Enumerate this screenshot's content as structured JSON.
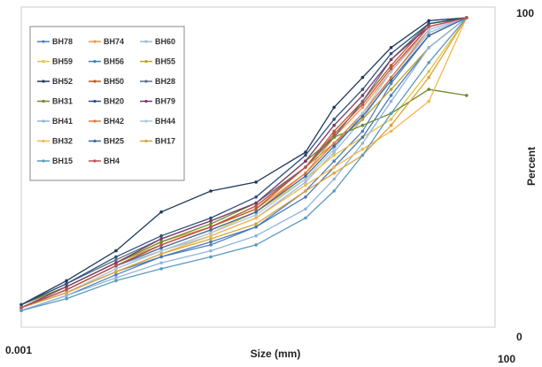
{
  "chart_data": {
    "type": "line",
    "xlabel": "Size (mm)",
    "ylabel": "Percent",
    "x_scale": "log",
    "xlim": [
      0.001,
      100
    ],
    "ylim": [
      0,
      100
    ],
    "x_tick_labels": [
      "0.001",
      "100"
    ],
    "y_tick_labels": [
      "0",
      "100"
    ],
    "grid": false,
    "legend_position": "top-left",
    "series": [
      {
        "name": "BH78",
        "color": "#4f81bd",
        "x": [
          0.001,
          0.003,
          0.01,
          0.03,
          0.1,
          0.3,
          1,
          2,
          4,
          8,
          20,
          50
        ],
        "y": [
          2,
          7,
          14,
          20,
          24,
          30,
          42,
          52,
          62,
          78,
          94,
          100
        ]
      },
      {
        "name": "BH74",
        "color": "#f79646",
        "x": [
          0.001,
          0.003,
          0.01,
          0.03,
          0.1,
          0.3,
          1,
          2,
          4,
          8,
          20,
          50
        ],
        "y": [
          4,
          10,
          18,
          25,
          30,
          36,
          48,
          60,
          70,
          82,
          97,
          100
        ]
      },
      {
        "name": "BH60",
        "color": "#9bbbd9",
        "x": [
          0.001,
          0.003,
          0.01,
          0.03,
          0.1,
          0.3,
          1,
          2,
          4,
          8,
          20,
          50
        ],
        "y": [
          3,
          9,
          17,
          22,
          27,
          33,
          45,
          55,
          66,
          80,
          95,
          100
        ]
      },
      {
        "name": "BH59",
        "color": "#e8c33a",
        "x": [
          0.001,
          0.003,
          0.01,
          0.03,
          0.1,
          0.3,
          1,
          2,
          4,
          8,
          20,
          50
        ],
        "y": [
          3,
          8,
          16,
          22,
          28,
          35,
          46,
          54,
          60,
          66,
          82,
          100
        ]
      },
      {
        "name": "BH56",
        "color": "#4a7ab0",
        "x": [
          0.001,
          0.003,
          0.01,
          0.03,
          0.1,
          0.3,
          1,
          2,
          4,
          8,
          20,
          50
        ],
        "y": [
          3,
          8,
          15,
          20,
          25,
          30,
          40,
          50,
          60,
          74,
          90,
          100
        ]
      },
      {
        "name": "BH55",
        "color": "#c0a030",
        "x": [
          0.001,
          0.003,
          0.01,
          0.03,
          0.1,
          0.3,
          1,
          2,
          4,
          8,
          20,
          50
        ],
        "y": [
          4,
          10,
          18,
          24,
          30,
          37,
          50,
          58,
          66,
          76,
          90,
          100
        ]
      },
      {
        "name": "BH52",
        "color": "#1f3a5c",
        "x": [
          0.001,
          0.003,
          0.01,
          0.03,
          0.1,
          0.3,
          1,
          2,
          4,
          8,
          20,
          50
        ],
        "y": [
          4,
          12,
          22,
          35,
          42,
          45,
          55,
          70,
          80,
          90,
          99,
          100
        ]
      },
      {
        "name": "BH50",
        "color": "#b85c1e",
        "x": [
          0.001,
          0.003,
          0.01,
          0.03,
          0.1,
          0.3,
          1,
          2,
          4,
          8,
          20,
          50
        ],
        "y": [
          3,
          9,
          17,
          24,
          30,
          36,
          50,
          62,
          72,
          84,
          98,
          100
        ]
      },
      {
        "name": "BH28",
        "color": "#5a6e85",
        "x": [
          0.001,
          0.003,
          0.01,
          0.03,
          0.1,
          0.3,
          1,
          2,
          4,
          8,
          20,
          50
        ],
        "y": [
          4,
          11,
          19,
          26,
          32,
          38,
          50,
          60,
          72,
          86,
          98,
          100
        ]
      },
      {
        "name": "BH31",
        "color": "#6b8a2a",
        "x": [
          0.001,
          0.003,
          0.01,
          0.03,
          0.1,
          0.3,
          1,
          2,
          4,
          8,
          20,
          50
        ],
        "y": [
          4,
          10,
          18,
          25,
          31,
          38,
          52,
          60,
          64,
          68,
          76,
          74
        ]
      },
      {
        "name": "BH20",
        "color": "#2d4f7a",
        "x": [
          0.001,
          0.003,
          0.01,
          0.03,
          0.1,
          0.3,
          1,
          2,
          4,
          8,
          20,
          50
        ],
        "y": [
          4,
          11,
          20,
          27,
          33,
          40,
          54,
          66,
          76,
          88,
          98,
          100
        ]
      },
      {
        "name": "BH79",
        "color": "#7a3a6a",
        "x": [
          0.001,
          0.003,
          0.01,
          0.03,
          0.1,
          0.3,
          1,
          2,
          4,
          8,
          20,
          50
        ],
        "y": [
          3,
          10,
          18,
          26,
          32,
          38,
          52,
          64,
          74,
          86,
          97,
          100
        ]
      },
      {
        "name": "BH41",
        "color": "#8fb4dd",
        "x": [
          0.001,
          0.003,
          0.01,
          0.03,
          0.1,
          0.3,
          1,
          2,
          4,
          8,
          20,
          50
        ],
        "y": [
          2,
          7,
          13,
          18,
          22,
          27,
          36,
          46,
          58,
          72,
          90,
          100
        ]
      },
      {
        "name": "BH42",
        "color": "#e07a3a",
        "x": [
          0.001,
          0.003,
          0.01,
          0.03,
          0.1,
          0.3,
          1,
          2,
          4,
          8,
          20,
          50
        ],
        "y": [
          3,
          9,
          17,
          23,
          29,
          35,
          48,
          58,
          68,
          80,
          96,
          100
        ]
      },
      {
        "name": "BH44",
        "color": "#a9c4e2",
        "x": [
          0.001,
          0.003,
          0.01,
          0.03,
          0.1,
          0.3,
          1,
          2,
          4,
          8,
          20,
          50
        ],
        "y": [
          3,
          8,
          16,
          22,
          28,
          34,
          46,
          56,
          68,
          82,
          96,
          100
        ]
      },
      {
        "name": "BH32",
        "color": "#f2b84b",
        "x": [
          0.001,
          0.003,
          0.01,
          0.03,
          0.1,
          0.3,
          1,
          2,
          4,
          8,
          20,
          50
        ],
        "y": [
          3,
          8,
          15,
          21,
          27,
          33,
          44,
          50,
          56,
          62,
          72,
          100
        ]
      },
      {
        "name": "BH25",
        "color": "#3d6a99",
        "x": [
          0.001,
          0.003,
          0.01,
          0.03,
          0.1,
          0.3,
          1,
          2,
          4,
          8,
          20,
          50
        ],
        "y": [
          3,
          9,
          17,
          23,
          29,
          35,
          47,
          57,
          67,
          79,
          94,
          100
        ]
      },
      {
        "name": "BH17",
        "color": "#d9a33e",
        "x": [
          0.001,
          0.003,
          0.01,
          0.03,
          0.1,
          0.3,
          1,
          2,
          4,
          8,
          20,
          50
        ],
        "y": [
          3,
          8,
          15,
          21,
          26,
          31,
          42,
          48,
          54,
          64,
          80,
          100
        ]
      },
      {
        "name": "BH15",
        "color": "#5b9bbf",
        "x": [
          0.001,
          0.003,
          0.01,
          0.03,
          0.1,
          0.3,
          1,
          2,
          4,
          8,
          20,
          50
        ],
        "y": [
          2,
          6,
          12,
          16,
          20,
          24,
          33,
          42,
          54,
          68,
          85,
          100
        ]
      },
      {
        "name": "BH4",
        "color": "#c0504d",
        "x": [
          0.001,
          0.003,
          0.01,
          0.03,
          0.1,
          0.3,
          1,
          2,
          4,
          8,
          20,
          50
        ],
        "y": [
          3,
          9,
          17,
          24,
          30,
          37,
          50,
          61,
          71,
          83,
          97,
          100
        ]
      }
    ]
  }
}
